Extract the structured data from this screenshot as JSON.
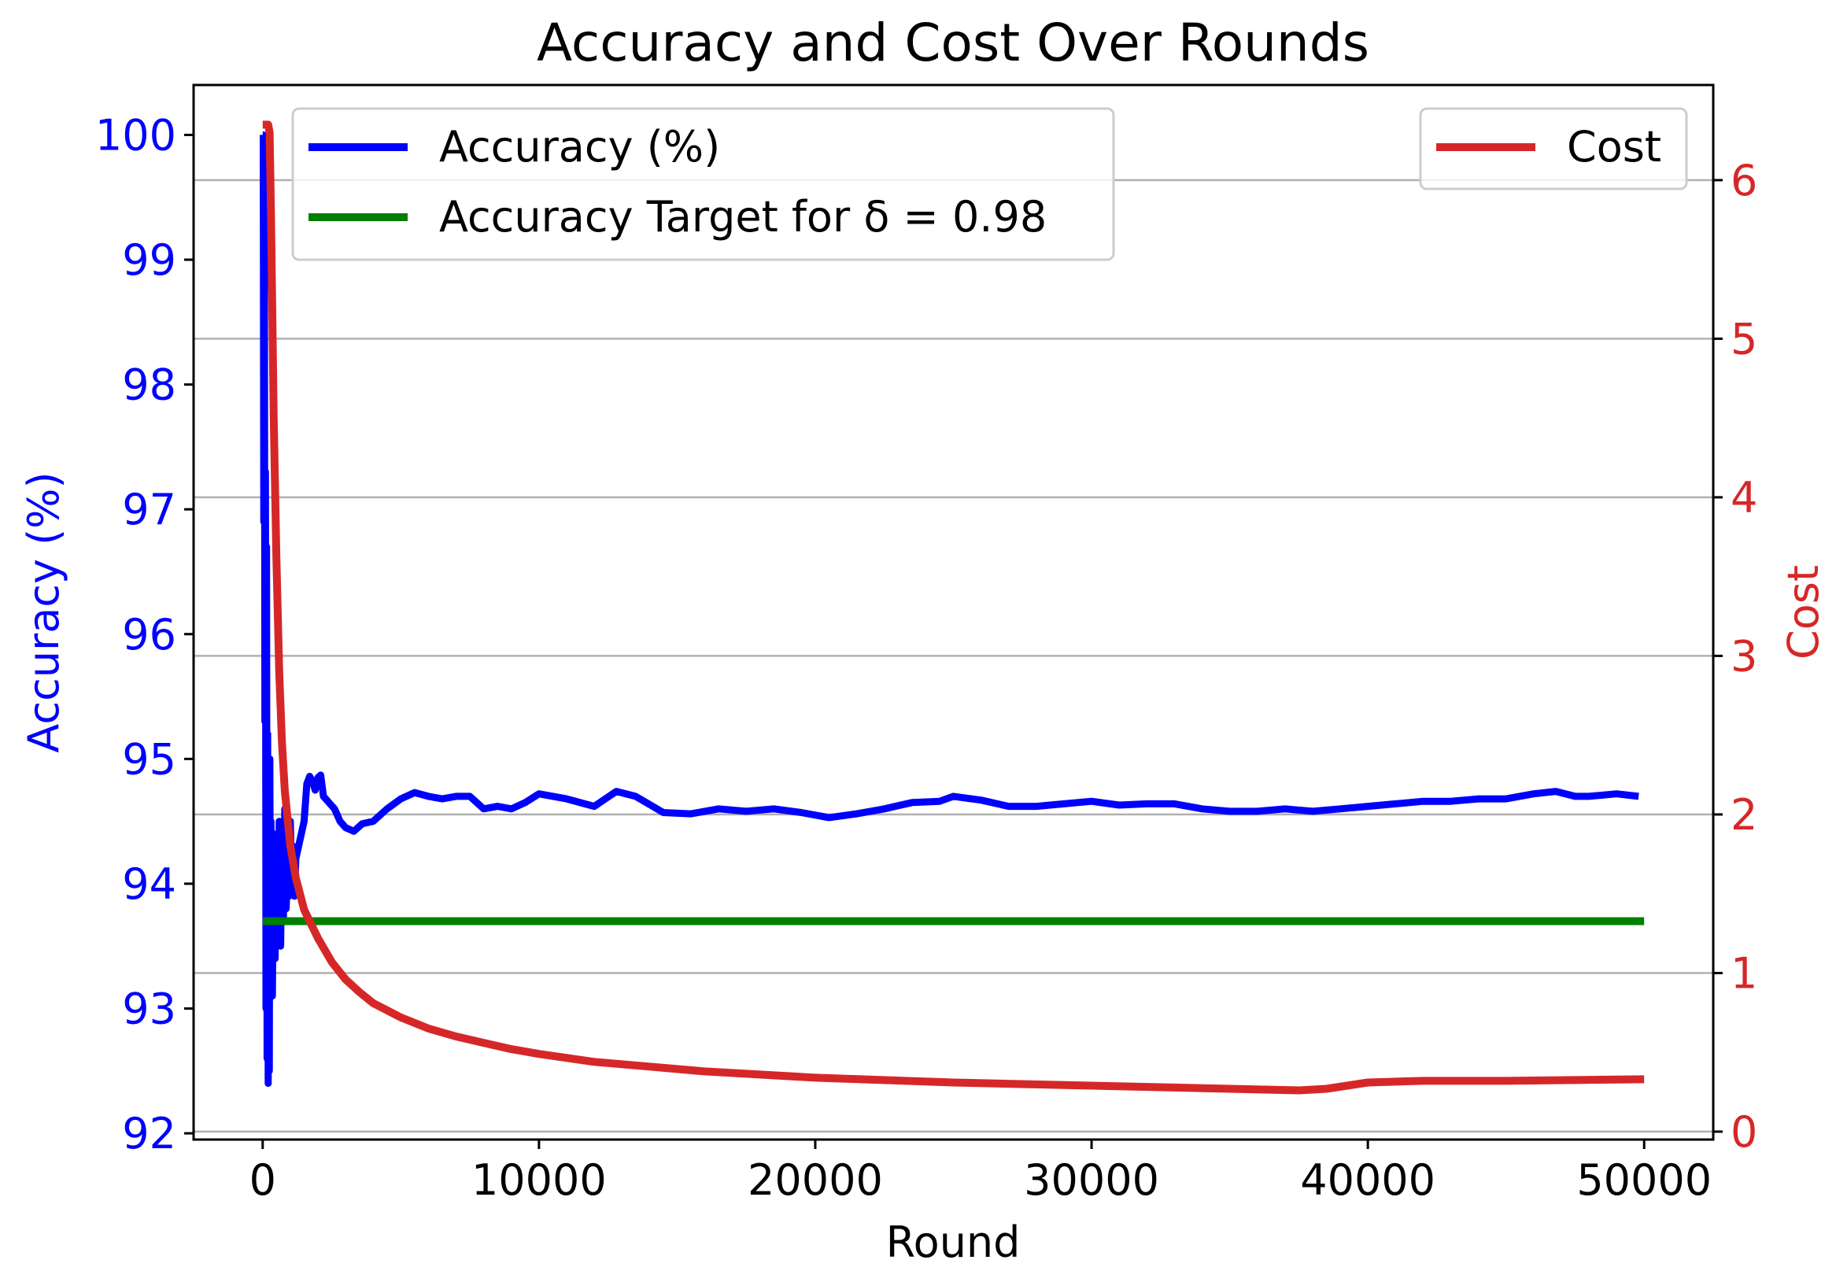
{
  "chart_data": {
    "type": "line",
    "title": "Accuracy and Cost Over Rounds",
    "xlabel": "Round",
    "ylabel_left": "Accuracy (%)",
    "ylabel_right": "Cost",
    "xlim": [
      -2500,
      52500
    ],
    "ylim_left": [
      91.95,
      100.4
    ],
    "ylim_right": [
      -0.05,
      6.6
    ],
    "xticks": [
      0,
      10000,
      20000,
      30000,
      40000,
      50000
    ],
    "xtick_labels": [
      "0",
      "10000",
      "20000",
      "30000",
      "40000",
      "50000"
    ],
    "yticks_left": [
      92,
      93,
      94,
      95,
      96,
      97,
      98,
      99,
      100
    ],
    "ytick_labels_left": [
      "92",
      "93",
      "94",
      "95",
      "96",
      "97",
      "98",
      "99",
      "100"
    ],
    "yticks_right": [
      0,
      1,
      2,
      3,
      4,
      5,
      6
    ],
    "ytick_labels_right": [
      "0",
      "1",
      "2",
      "3",
      "4",
      "5",
      "6"
    ],
    "grid": "horizontal lines at right-axis ticks",
    "legend_left_placement": "upper-left",
    "legend_right_placement": "upper-right",
    "colors": {
      "accuracy": "#0000ff",
      "target": "#008000",
      "cost": "#d62728",
      "left_axis": "#0000ff",
      "right_axis": "#d62728",
      "grid": "#b0b0b0"
    },
    "series": [
      {
        "name": "Accuracy (%)",
        "axis": "left",
        "x": [
          0,
          20,
          40,
          60,
          80,
          100,
          120,
          140,
          160,
          180,
          200,
          220,
          240,
          260,
          280,
          300,
          350,
          400,
          450,
          500,
          550,
          600,
          650,
          700,
          750,
          800,
          850,
          900,
          950,
          1000,
          1050,
          1100,
          1150,
          1200,
          1300,
          1400,
          1500,
          1600,
          1700,
          1800,
          1900,
          2000,
          2100,
          2200,
          2400,
          2600,
          2800,
          3000,
          3300,
          3600,
          4000,
          4500,
          5000,
          5500,
          6000,
          6500,
          7000,
          7500,
          8000,
          8500,
          9000,
          9500,
          10000,
          11000,
          12000,
          12800,
          13500,
          14500,
          15500,
          16500,
          17500,
          18500,
          19500,
          20500,
          21500,
          22500,
          23500,
          24500,
          25000,
          26000,
          27000,
          28000,
          29000,
          30000,
          31000,
          32000,
          33000,
          34000,
          35000,
          36000,
          37000,
          38000,
          39000,
          40000,
          41000,
          42000,
          43000,
          44000,
          45000,
          46000,
          46800,
          47500,
          48000,
          49000,
          49800
        ],
        "y": [
          100,
          100,
          96.9,
          99.5,
          95.3,
          97.3,
          93.0,
          96.7,
          92.6,
          95.2,
          92.4,
          94.8,
          92.5,
          95.0,
          93.2,
          94.5,
          93.1,
          94.4,
          93.4,
          94.3,
          93.6,
          94.5,
          93.5,
          94.4,
          93.7,
          94.6,
          93.8,
          94.1,
          93.9,
          94.5,
          94.0,
          94.3,
          93.9,
          94.2,
          94.3,
          94.4,
          94.5,
          94.8,
          94.86,
          94.82,
          94.75,
          94.85,
          94.87,
          94.7,
          94.65,
          94.6,
          94.5,
          94.45,
          94.42,
          94.48,
          94.5,
          94.6,
          94.68,
          94.73,
          94.7,
          94.68,
          94.7,
          94.7,
          94.6,
          94.62,
          94.6,
          94.65,
          94.72,
          94.68,
          94.62,
          94.74,
          94.7,
          94.57,
          94.56,
          94.6,
          94.58,
          94.6,
          94.57,
          94.53,
          94.56,
          94.6,
          94.65,
          94.66,
          94.7,
          94.67,
          94.62,
          94.62,
          94.64,
          94.66,
          94.63,
          94.64,
          94.64,
          94.6,
          94.58,
          94.58,
          94.6,
          94.58,
          94.6,
          94.62,
          94.64,
          94.66,
          94.66,
          94.68,
          94.68,
          94.72,
          94.74,
          94.7,
          94.7,
          94.72,
          94.7
        ]
      },
      {
        "name": "Accuracy Target for δ = 0.98",
        "axis": "left",
        "x": [
          0,
          50000
        ],
        "y": [
          93.7,
          93.7
        ]
      },
      {
        "name": "Cost",
        "axis": "right",
        "x": [
          0,
          100,
          200,
          250,
          300,
          400,
          500,
          600,
          700,
          800,
          1000,
          1200,
          1500,
          2000,
          2500,
          3000,
          3500,
          4000,
          5000,
          6000,
          7000,
          8000,
          9000,
          10000,
          12000,
          14000,
          16000,
          18000,
          20000,
          25000,
          30000,
          35000,
          37500,
          38500,
          40000,
          42000,
          45000,
          50000
        ],
        "y": [
          6.35,
          6.35,
          6.35,
          6.3,
          5.8,
          4.5,
          3.6,
          2.9,
          2.45,
          2.15,
          1.8,
          1.6,
          1.4,
          1.22,
          1.07,
          0.96,
          0.88,
          0.81,
          0.72,
          0.65,
          0.6,
          0.56,
          0.52,
          0.49,
          0.44,
          0.41,
          0.38,
          0.36,
          0.34,
          0.31,
          0.29,
          0.27,
          0.26,
          0.27,
          0.31,
          0.32,
          0.32,
          0.33
        ]
      }
    ]
  }
}
